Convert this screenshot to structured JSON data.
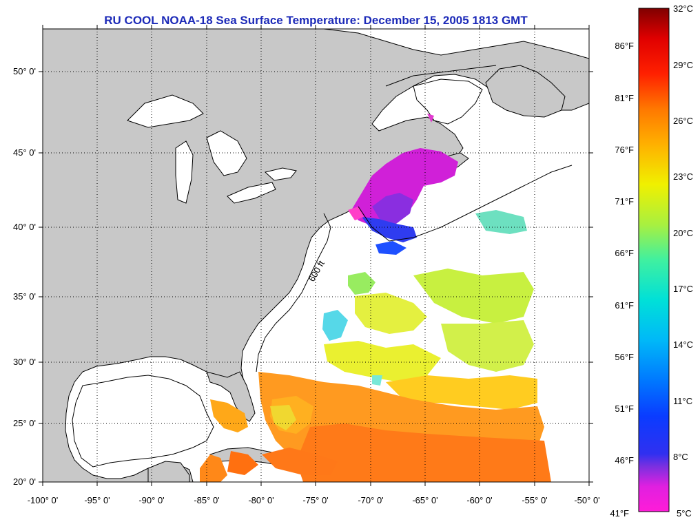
{
  "title": "RU COOL  NOAA-18  Sea Surface Temperature:  December 15, 2005 1813 GMT",
  "map": {
    "lat_ticks": [
      "50° 0'",
      "45° 0'",
      "40° 0'",
      "35° 0'",
      "30° 0'",
      "25° 0'",
      "20° 0'"
    ],
    "lon_ticks": [
      "-100° 0'",
      "-95° 0'",
      "-90° 0'",
      "-85° 0'",
      "-80° 0'",
      "-75° 0'",
      "-70° 0'",
      "-65° 0'",
      "-60° 0'",
      "-55° 0'",
      "-50° 0'"
    ],
    "isobath_label": "600 ft",
    "land_color": "#c8c8c8",
    "water_color": "#ffffff"
  },
  "colorbar": {
    "celsius_labels": [
      "32°C",
      "29°C",
      "26°C",
      "23°C",
      "20°C",
      "17°C",
      "14°C",
      "11°C",
      "8°C",
      "5°C"
    ],
    "fahrenheit_labels": [
      "86°F",
      "81°F",
      "76°F",
      "71°F",
      "66°F",
      "61°F",
      "56°F",
      "51°F",
      "46°F",
      "41°F"
    ]
  }
}
